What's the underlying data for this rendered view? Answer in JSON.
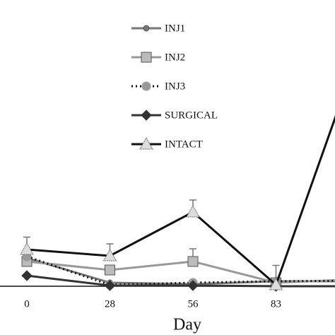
{
  "chart_data": {
    "type": "line",
    "xlabel": "Day",
    "categories": [
      "0",
      "28",
      "56",
      "83",
      null
    ],
    "ylim": [
      0,
      160
    ],
    "legend": "top",
    "series": [
      {
        "name": "INJ1",
        "color": "#777777",
        "marker": "circle",
        "dash": "solid",
        "values": [
          16,
          2,
          1.2,
          2.8,
          2.8
        ]
      },
      {
        "name": "INJ2",
        "color": "#999999",
        "marker": "square",
        "dash": "solid",
        "values": [
          14,
          9.2,
          14,
          2,
          4
        ],
        "errors": [
          null,
          null,
          7.2,
          null,
          null
        ]
      },
      {
        "name": "INJ3",
        "color": "#111111",
        "marker": "bigcircle",
        "dash": "dotted",
        "values": [
          16.8,
          0.8,
          2,
          2.8,
          3.2
        ]
      },
      {
        "name": "SURGICAL",
        "color": "#333333",
        "marker": "diamond",
        "dash": "solid",
        "values": [
          6,
          0.4,
          0.4,
          0,
          0
        ]
      },
      {
        "name": "INTACT",
        "color": "#111111",
        "marker": "triangle",
        "dash": "solid",
        "values": [
          20.8,
          17.2,
          42,
          0.8,
          133.4
        ],
        "errors": [
          7,
          6.8,
          6.8,
          11,
          null
        ]
      }
    ]
  }
}
